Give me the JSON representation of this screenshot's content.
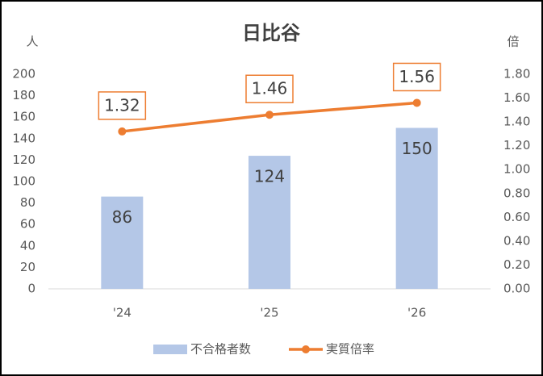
{
  "chart_data": {
    "type": "bar-line",
    "title": "日比谷",
    "y_label": "人",
    "y2_label": "倍",
    "categories": [
      "'24",
      "'25",
      "'26"
    ],
    "series": [
      {
        "name": "不合格者数",
        "type": "bar",
        "color": "#b4c7e7",
        "values": [
          86,
          124,
          150
        ]
      },
      {
        "name": "実質倍率",
        "type": "line",
        "color": "#ed7d31",
        "axis": "y2",
        "values": [
          1.32,
          1.46,
          1.56
        ]
      }
    ],
    "ylim": [
      0,
      200
    ],
    "yticks": [
      0,
      20,
      40,
      60,
      80,
      100,
      120,
      140,
      160,
      180,
      200
    ],
    "y2lim": [
      0,
      1.8
    ],
    "y2ticks": [
      {
        "value": 0,
        "label": "0.00"
      },
      {
        "value": 0.2,
        "label": "0.20"
      },
      {
        "value": 0.4,
        "label": "0.40"
      },
      {
        "value": 0.6,
        "label": "0.60"
      },
      {
        "value": 0.8,
        "label": "0.80"
      },
      {
        "value": 1,
        "label": "1.00"
      },
      {
        "value": 1.2,
        "label": "1.20"
      },
      {
        "value": 1.4,
        "label": "1.40"
      },
      {
        "value": 1.6,
        "label": "1.60"
      },
      {
        "value": 1.8,
        "label": "1.80"
      }
    ],
    "legend": "bottom",
    "grid": false
  }
}
